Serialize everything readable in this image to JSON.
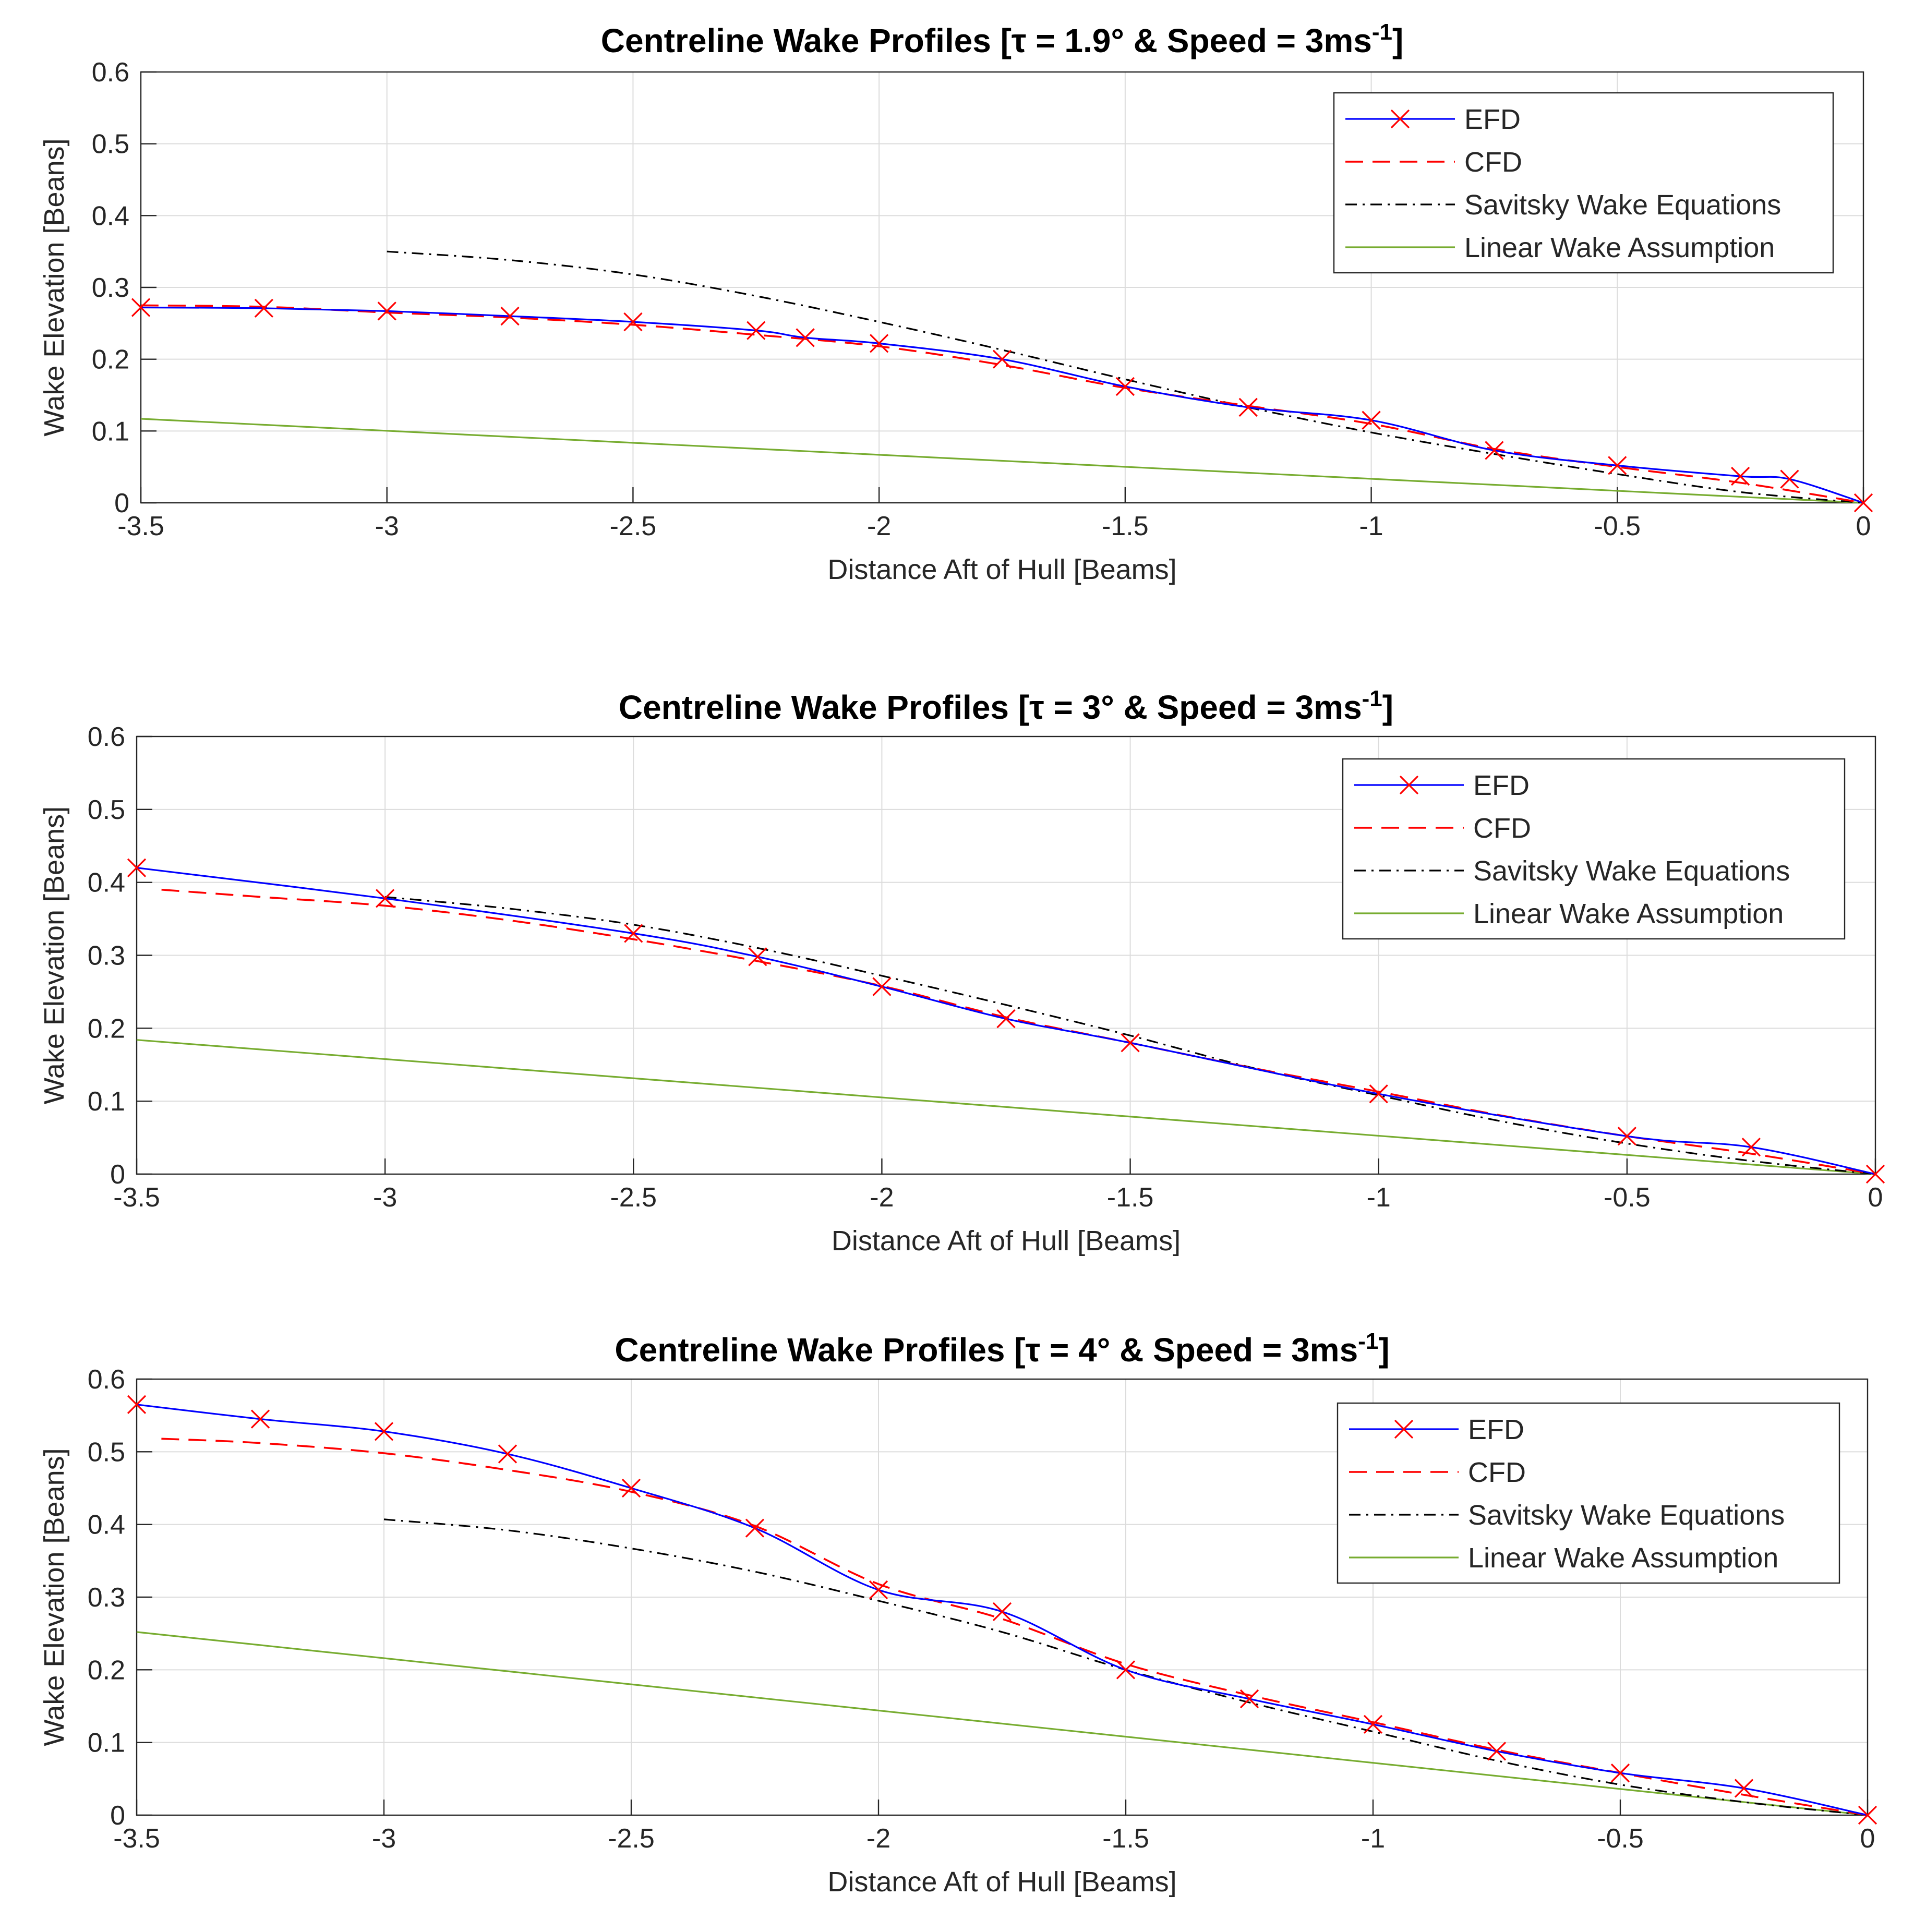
{
  "colors": {
    "efd_line": "#0000ff",
    "efd_marker": "#ff0000",
    "cfd": "#ff0000",
    "savitsky": "#000000",
    "linear": "#77ac30",
    "grid": "#dcdcdc",
    "axes": "#262626"
  },
  "chart_data": [
    {
      "type": "line",
      "title": "Centreline Wake Profiles [τ = 1.9° & Speed = 3ms",
      "title_superscript": "-1",
      "title_close": "]",
      "xlabel": "Distance Aft of Hull [Beams]",
      "ylabel": "Wake Elevation [Beans]",
      "xlim": [
        -3.5,
        0
      ],
      "ylim": [
        0,
        0.6
      ],
      "xticks": [
        -3.5,
        -3,
        -2.5,
        -2,
        -1.5,
        -1,
        -0.5,
        0
      ],
      "xtick_labels": [
        "-3.5",
        "-3",
        "-2.5",
        "-2",
        "-1.5",
        "-1",
        "-0.5",
        "0"
      ],
      "yticks": [
        0,
        0.1,
        0.2,
        0.3,
        0.4,
        0.5,
        0.6
      ],
      "ytick_labels": [
        "0",
        "0.1",
        "0.2",
        "0.3",
        "0.4",
        "0.5",
        "0.6"
      ],
      "grid": true,
      "legend_position": "top-right",
      "series": [
        {
          "name": "EFD",
          "style": "solid-markers",
          "x": [
            -3.5,
            -3.25,
            -3,
            -2.75,
            -2.5,
            -2.25,
            -2.15,
            -2,
            -1.75,
            -1.5,
            -1.25,
            -1,
            -0.75,
            -0.5,
            -0.25,
            -0.15,
            0
          ],
          "y": [
            0.272,
            0.271,
            0.267,
            0.26,
            0.252,
            0.24,
            0.23,
            0.222,
            0.2,
            0.162,
            0.133,
            0.115,
            0.073,
            0.052,
            0.037,
            0.033,
            0.0
          ]
        },
        {
          "name": "CFD",
          "style": "dashed",
          "x": [
            -3.5,
            -3.25,
            -3,
            -2.75,
            -2.5,
            -2.25,
            -2,
            -1.75,
            -1.5,
            -1.25,
            -1,
            -0.75,
            -0.5,
            -0.25,
            0
          ],
          "y": [
            0.275,
            0.273,
            0.265,
            0.258,
            0.248,
            0.234,
            0.218,
            0.192,
            0.16,
            0.135,
            0.11,
            0.075,
            0.05,
            0.028,
            0.0
          ]
        },
        {
          "name": "Savitsky Wake Equations",
          "style": "dashdot",
          "x": [
            -3,
            -2.75,
            -2.5,
            -2.25,
            -2,
            -1.75,
            -1.5,
            -1.25,
            -1,
            -0.75,
            -0.5,
            -0.25,
            0
          ],
          "y": [
            0.35,
            0.338,
            0.318,
            0.288,
            0.252,
            0.213,
            0.172,
            0.133,
            0.098,
            0.068,
            0.04,
            0.015,
            0.0
          ]
        },
        {
          "name": "Linear Wake Assumption",
          "style": "solid",
          "x": [
            -3.5,
            0
          ],
          "y": [
            0.117,
            0.0
          ]
        }
      ]
    },
    {
      "type": "line",
      "title": "Centreline Wake Profiles [τ = 3° & Speed = 3ms",
      "title_superscript": "-1",
      "title_close": "]",
      "xlabel": "Distance Aft of Hull [Beams]",
      "ylabel": "Wake Elevation [Beans]",
      "xlim": [
        -3.5,
        0
      ],
      "ylim": [
        0,
        0.6
      ],
      "xticks": [
        -3.5,
        -3,
        -2.5,
        -2,
        -1.5,
        -1,
        -0.5,
        0
      ],
      "xtick_labels": [
        "-3.5",
        "-3",
        "-2.5",
        "-2",
        "-1.5",
        "-1",
        "-0.5",
        "0"
      ],
      "yticks": [
        0,
        0.1,
        0.2,
        0.3,
        0.4,
        0.5,
        0.6
      ],
      "ytick_labels": [
        "0",
        "0.1",
        "0.2",
        "0.3",
        "0.4",
        "0.5",
        "0.6"
      ],
      "grid": true,
      "legend_position": "top-right",
      "series": [
        {
          "name": "EFD",
          "style": "solid-markers",
          "x": [
            -3.5,
            -3,
            -2.5,
            -2.25,
            -2,
            -1.75,
            -1.5,
            -1,
            -0.5,
            -0.25,
            0
          ],
          "y": [
            0.42,
            0.378,
            0.33,
            0.298,
            0.257,
            0.213,
            0.18,
            0.11,
            0.052,
            0.037,
            0.0
          ]
        },
        {
          "name": "CFD",
          "style": "dashed",
          "x": [
            -3.45,
            -3.25,
            -3,
            -2.75,
            -2.5,
            -2.25,
            -2,
            -1.75,
            -1.5,
            -1.25,
            -1,
            -0.75,
            -0.5,
            -0.25,
            0
          ],
          "y": [
            0.39,
            0.38,
            0.368,
            0.348,
            0.322,
            0.292,
            0.258,
            0.215,
            0.18,
            0.145,
            0.113,
            0.08,
            0.052,
            0.028,
            0.0
          ]
        },
        {
          "name": "Savitsky Wake Equations",
          "style": "dashdot",
          "x": [
            -3,
            -2.75,
            -2.5,
            -2.25,
            -2,
            -1.75,
            -1.5,
            -1.25,
            -1,
            -0.75,
            -0.5,
            -0.25,
            0
          ],
          "y": [
            0.38,
            0.364,
            0.342,
            0.31,
            0.272,
            0.232,
            0.19,
            0.145,
            0.108,
            0.072,
            0.042,
            0.018,
            0.0
          ]
        },
        {
          "name": "Linear Wake Assumption",
          "style": "solid",
          "x": [
            -3.5,
            0
          ],
          "y": [
            0.184,
            0.0
          ]
        }
      ]
    },
    {
      "type": "line",
      "title": "Centreline Wake Profiles [τ = 4° & Speed = 3ms",
      "title_superscript": "-1",
      "title_close": "]",
      "xlabel": "Distance Aft of Hull [Beams]",
      "ylabel": "Wake Elevation [Beans]",
      "xlim": [
        -3.5,
        0
      ],
      "ylim": [
        0,
        0.6
      ],
      "xticks": [
        -3.5,
        -3,
        -2.5,
        -2,
        -1.5,
        -1,
        -0.5,
        0
      ],
      "xtick_labels": [
        "-3.5",
        "-3",
        "-2.5",
        "-2",
        "-1.5",
        "-1",
        "-0.5",
        "0"
      ],
      "yticks": [
        0,
        0.1,
        0.2,
        0.3,
        0.4,
        0.5,
        0.6
      ],
      "ytick_labels": [
        "0",
        "0.1",
        "0.2",
        "0.3",
        "0.4",
        "0.5",
        "0.6"
      ],
      "grid": true,
      "legend_position": "top-right",
      "series": [
        {
          "name": "EFD",
          "style": "solid-markers",
          "x": [
            -3.5,
            -3.25,
            -3,
            -2.75,
            -2.5,
            -2.25,
            -2,
            -1.75,
            -1.5,
            -1.25,
            -1,
            -0.75,
            -0.5,
            -0.25,
            0
          ],
          "y": [
            0.565,
            0.545,
            0.528,
            0.497,
            0.45,
            0.395,
            0.31,
            0.28,
            0.2,
            0.16,
            0.125,
            0.088,
            0.058,
            0.037,
            0.0
          ]
        },
        {
          "name": "CFD",
          "style": "dashed",
          "x": [
            -3.45,
            -3.25,
            -3,
            -2.75,
            -2.5,
            -2.25,
            -2,
            -1.75,
            -1.5,
            -1.25,
            -1,
            -0.75,
            -0.5,
            -0.25,
            0
          ],
          "y": [
            0.518,
            0.512,
            0.498,
            0.475,
            0.445,
            0.398,
            0.318,
            0.27,
            0.208,
            0.165,
            0.128,
            0.09,
            0.058,
            0.028,
            0.0
          ]
        },
        {
          "name": "Savitsky Wake Equations",
          "style": "dashdot",
          "x": [
            -3,
            -2.75,
            -2.5,
            -2.25,
            -2,
            -1.75,
            -1.5,
            -1.25,
            -1,
            -0.75,
            -0.5,
            -0.25,
            0
          ],
          "y": [
            0.407,
            0.392,
            0.367,
            0.335,
            0.295,
            0.252,
            0.2,
            0.155,
            0.115,
            0.075,
            0.042,
            0.018,
            0.0
          ]
        },
        {
          "name": "Linear Wake Assumption",
          "style": "solid",
          "x": [
            -3.5,
            0
          ],
          "y": [
            0.252,
            0.0
          ]
        }
      ]
    }
  ]
}
